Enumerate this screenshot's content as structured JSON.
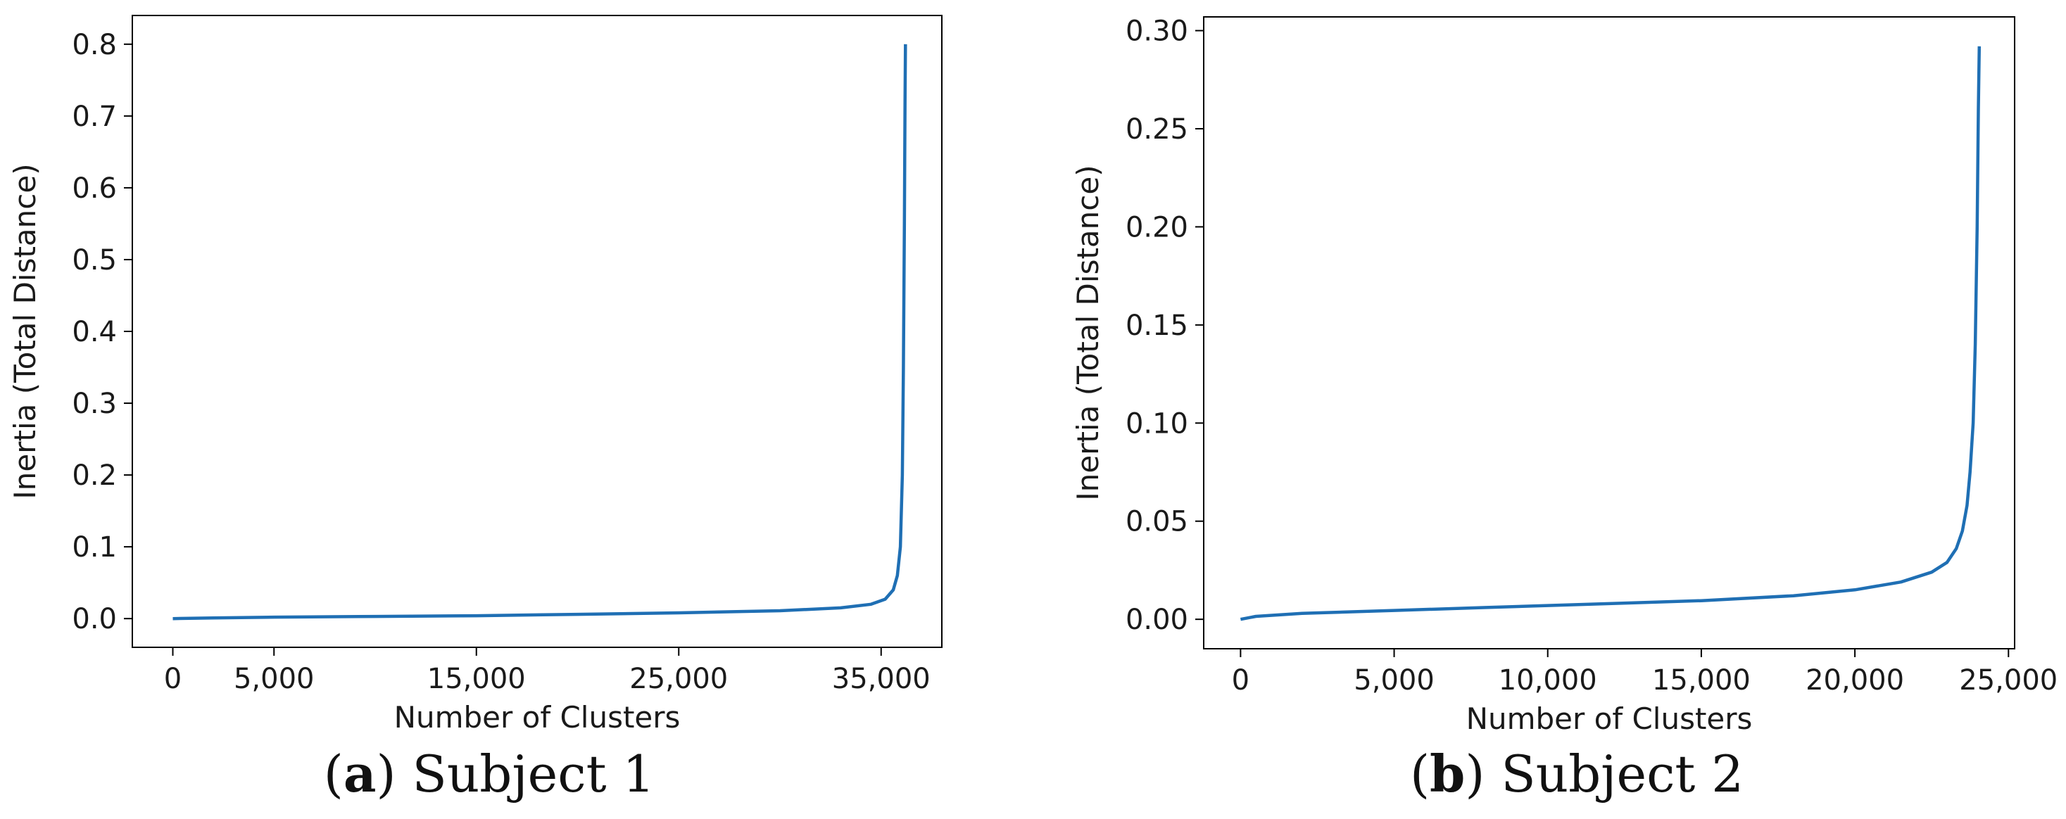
{
  "figure": {
    "captions": [
      {
        "open": "(",
        "letter": "a",
        "close": ") ",
        "text": "Subject 1"
      },
      {
        "open": "(",
        "letter": "b",
        "close": ") ",
        "text": "Subject 2"
      }
    ]
  },
  "chart_data": [
    {
      "type": "line",
      "title": "",
      "xlabel": "Number of Clusters",
      "ylabel": "Inertia (Total Distance)",
      "xlim": [
        -2000,
        38000
      ],
      "ylim": [
        -0.04,
        0.84
      ],
      "xticks": [
        0,
        5000,
        15000,
        25000,
        35000
      ],
      "xtick_labels": [
        "0",
        "5,000",
        "15,000",
        "25,000",
        "35,000"
      ],
      "yticks": [
        0.0,
        0.1,
        0.2,
        0.3,
        0.4,
        0.5,
        0.6,
        0.7,
        0.8
      ],
      "ytick_labels": [
        "0.0",
        "0.1",
        "0.2",
        "0.3",
        "0.4",
        "0.5",
        "0.6",
        "0.7",
        "0.8"
      ],
      "grid": false,
      "color": "#1f6fb4",
      "series": [
        {
          "x": [
            0,
            2000,
            5000,
            10000,
            15000,
            20000,
            25000,
            30000,
            33000,
            34500,
            35200,
            35600,
            35800,
            35950,
            36050,
            36100,
            36150,
            36180,
            36200
          ],
          "y": [
            0.0,
            0.001,
            0.002,
            0.003,
            0.004,
            0.006,
            0.008,
            0.011,
            0.015,
            0.02,
            0.027,
            0.04,
            0.06,
            0.1,
            0.2,
            0.35,
            0.55,
            0.72,
            0.8
          ]
        }
      ]
    },
    {
      "type": "line",
      "title": "",
      "xlabel": "Number of Clusters",
      "ylabel": "Inertia (Total Distance)",
      "xlim": [
        -1200,
        25200
      ],
      "ylim": [
        -0.015,
        0.307
      ],
      "xticks": [
        0,
        5000,
        10000,
        15000,
        20000,
        25000
      ],
      "xtick_labels": [
        "0",
        "5,000",
        "10,000",
        "15,000",
        "20,000",
        "25,000"
      ],
      "yticks": [
        0.0,
        0.05,
        0.1,
        0.15,
        0.2,
        0.25,
        0.3
      ],
      "ytick_labels": [
        "0.00",
        "0.05",
        "0.10",
        "0.15",
        "0.20",
        "0.25",
        "0.30"
      ],
      "grid": false,
      "color": "#1f6fb4",
      "series": [
        {
          "x": [
            0,
            500,
            2000,
            5000,
            8000,
            10000,
            12000,
            15000,
            18000,
            20000,
            21500,
            22500,
            23000,
            23300,
            23500,
            23650,
            23750,
            23850,
            23920,
            23980,
            24020,
            24050
          ],
          "y": [
            0.0,
            0.0015,
            0.003,
            0.0045,
            0.006,
            0.007,
            0.008,
            0.0095,
            0.012,
            0.015,
            0.019,
            0.024,
            0.029,
            0.036,
            0.045,
            0.058,
            0.075,
            0.1,
            0.14,
            0.2,
            0.26,
            0.292
          ]
        }
      ]
    }
  ]
}
